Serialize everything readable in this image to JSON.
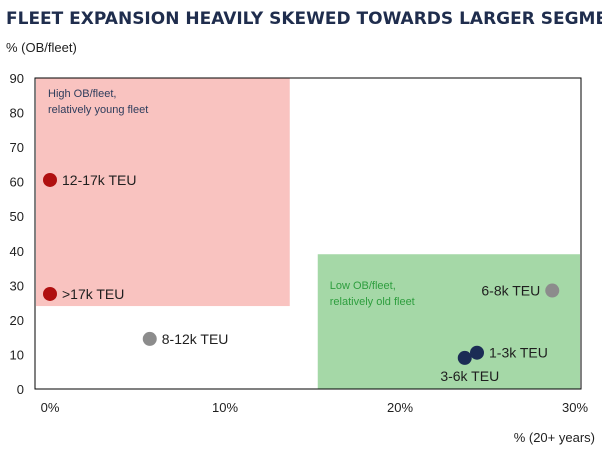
{
  "chart_data": {
    "type": "scatter",
    "title": "FLEET EXPANSION HEAVILY SKEWED TOWARDS LARGER SEGMENTS",
    "ylabel": "% (OB/fleet)",
    "xlabel": "% (20+ years)",
    "xlim": [
      0,
      30
    ],
    "ylim": [
      0,
      90
    ],
    "x_ticks": [
      "0%",
      "10%",
      "20%",
      "30%"
    ],
    "y_ticks": [
      "0",
      "10",
      "20",
      "30",
      "40",
      "50",
      "60",
      "70",
      "80",
      "90"
    ],
    "grid": false,
    "zones": [
      {
        "label_lines": [
          "High OB/fleet,",
          "relatively young fleet"
        ],
        "x": [
          0,
          13.7
        ],
        "y": [
          24,
          90
        ],
        "color": "#f9c3c0",
        "text_color": "#2e3d5c"
      },
      {
        "label_lines": [
          "Low OB/fleet,",
          "relatively old fleet"
        ],
        "x": [
          15.3,
          30
        ],
        "y": [
          0,
          39
        ],
        "color": "#a5d8a7",
        "text_color": "#2e9e3e"
      }
    ],
    "points": [
      {
        "label": "12-17k TEU",
        "x": 0.0,
        "y": 60.5,
        "color": "#b01010",
        "label_pos": "right"
      },
      {
        "label": ">17k TEU",
        "x": 0.0,
        "y": 27.5,
        "color": "#b01010",
        "label_pos": "right"
      },
      {
        "label": "8-12k TEU",
        "x": 5.7,
        "y": 14.5,
        "color": "#8c8c8c",
        "label_pos": "right"
      },
      {
        "label": "6-8k TEU",
        "x": 28.7,
        "y": 28.5,
        "color": "#8c8c8c",
        "label_pos": "left"
      },
      {
        "label": "1-3k TEU",
        "x": 24.4,
        "y": 10.5,
        "color": "#1b2c55",
        "label_pos": "right"
      },
      {
        "label": "3-6k TEU",
        "x": 23.7,
        "y": 9.0,
        "color": "#1b2c55",
        "label_pos": "below"
      }
    ]
  }
}
